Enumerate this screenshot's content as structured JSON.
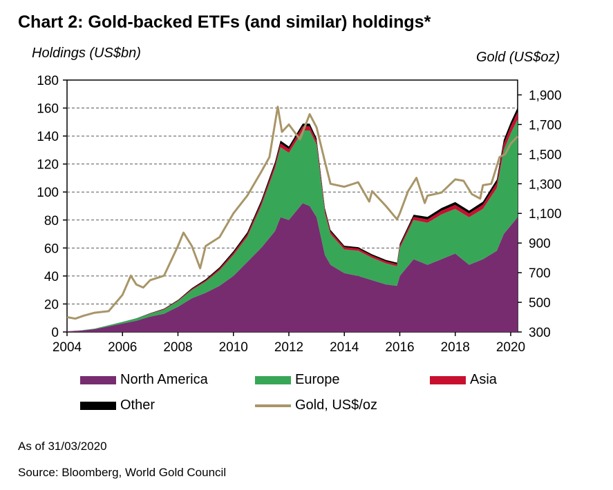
{
  "title": "Chart 2: Gold-backed ETFs (and similar) holdings*",
  "footnotes": {
    "as_of": "As of 31/03/2020",
    "source": "Source: Bloomberg, World Gold Council"
  },
  "chart_data": {
    "type": "area",
    "ylabel_left": "Holdings (US$bn)",
    "ylabel_right": "Gold (US$oz)",
    "xlim": [
      2004,
      2020.25
    ],
    "ylim_left": [
      0,
      180
    ],
    "ylim_right": [
      300,
      2000
    ],
    "x_ticks": [
      "2004",
      "2006",
      "2008",
      "2010",
      "2012",
      "2014",
      "2016",
      "2018",
      "2020"
    ],
    "y_ticks_left": [
      "0",
      "20",
      "40",
      "60",
      "80",
      "100",
      "120",
      "140",
      "160",
      "180"
    ],
    "y_ticks_right": [
      "300",
      "500",
      "700",
      "900",
      "1,100",
      "1,300",
      "1,500",
      "1,700",
      "1,900"
    ],
    "grid": "horizontal dashed",
    "colors": {
      "north_america": "#772C70",
      "europe": "#38A657",
      "asia": "#C8102E",
      "other": "#000000",
      "gold": "#A89668"
    },
    "x": [
      2004.0,
      2004.5,
      2005.0,
      2005.5,
      2006.0,
      2006.5,
      2007.0,
      2007.5,
      2008.0,
      2008.5,
      2009.0,
      2009.5,
      2010.0,
      2010.5,
      2011.0,
      2011.5,
      2011.7,
      2012.0,
      2012.5,
      2012.75,
      2013.0,
      2013.3,
      2013.5,
      2014.0,
      2014.5,
      2015.0,
      2015.5,
      2015.9,
      2016.0,
      2016.5,
      2017.0,
      2017.5,
      2018.0,
      2018.5,
      2019.0,
      2019.5,
      2019.75,
      2020.0,
      2020.25
    ],
    "series": [
      {
        "name": "North America",
        "values": [
          0.5,
          1,
          2,
          4,
          6,
          8,
          11,
          13,
          18,
          24,
          28,
          33,
          40,
          50,
          60,
          72,
          82,
          80,
          92,
          90,
          82,
          55,
          48,
          42,
          40,
          37,
          34,
          33,
          40,
          52,
          48,
          52,
          56,
          48,
          52,
          58,
          70,
          76,
          82
        ]
      },
      {
        "name": "Europe",
        "values": [
          0,
          0.2,
          0.4,
          0.8,
          1.2,
          1.6,
          2,
          3,
          4,
          6,
          8,
          11,
          15,
          18,
          30,
          45,
          50,
          48,
          52,
          54,
          52,
          30,
          22,
          17,
          18,
          16,
          15,
          14,
          20,
          28,
          30,
          32,
          32,
          34,
          36,
          45,
          60,
          66,
          70
        ]
      },
      {
        "name": "Asia",
        "values": [
          0,
          0,
          0,
          0,
          0,
          0,
          0.2,
          0.3,
          0.5,
          0.7,
          0.9,
          1.2,
          1.5,
          1.8,
          2.2,
          2.6,
          2.8,
          2.7,
          2.9,
          2.9,
          2.6,
          2.1,
          1.8,
          1.6,
          1.6,
          1.5,
          1.5,
          1.5,
          1.8,
          2.2,
          2.4,
          2.6,
          2.8,
          2.7,
          3.0,
          3.6,
          4.4,
          4.8,
          5.2
        ]
      },
      {
        "name": "Other",
        "values": [
          0,
          0,
          0,
          0,
          0,
          0.1,
          0.2,
          0.3,
          0.4,
          0.6,
          0.8,
          1.0,
          1.2,
          1.4,
          1.6,
          1.8,
          1.9,
          1.8,
          2.0,
          2.0,
          1.8,
          1.4,
          1.2,
          1.0,
          1.0,
          1.0,
          1.0,
          1.0,
          1.2,
          1.6,
          1.8,
          1.9,
          2.0,
          2.0,
          2.1,
          2.4,
          2.8,
          3.0,
          3.2
        ]
      }
    ],
    "gold_price": {
      "name": "Gold, US$/oz",
      "x": [
        2004.0,
        2004.3,
        2004.6,
        2005.0,
        2005.5,
        2006.0,
        2006.3,
        2006.5,
        2006.75,
        2007.0,
        2007.5,
        2008.0,
        2008.2,
        2008.5,
        2008.8,
        2009.0,
        2009.5,
        2010.0,
        2010.5,
        2011.0,
        2011.3,
        2011.6,
        2011.75,
        2012.0,
        2012.4,
        2012.75,
        2013.0,
        2013.3,
        2013.5,
        2014.0,
        2014.5,
        2014.9,
        2015.0,
        2015.5,
        2015.9,
        2016.0,
        2016.3,
        2016.6,
        2016.9,
        2017.0,
        2017.5,
        2018.0,
        2018.3,
        2018.6,
        2018.9,
        2019.0,
        2019.3,
        2019.6,
        2019.8,
        2020.0,
        2020.25
      ],
      "values": [
        400,
        390,
        410,
        430,
        440,
        550,
        680,
        620,
        600,
        650,
        680,
        880,
        970,
        880,
        730,
        880,
        940,
        1100,
        1220,
        1380,
        1480,
        1820,
        1650,
        1700,
        1600,
        1770,
        1680,
        1450,
        1300,
        1280,
        1310,
        1180,
        1250,
        1150,
        1060,
        1100,
        1250,
        1340,
        1170,
        1220,
        1240,
        1330,
        1320,
        1230,
        1200,
        1290,
        1300,
        1480,
        1500,
        1570,
        1620
      ]
    }
  },
  "legend": [
    {
      "label": "North America",
      "key": "north_america",
      "kind": "area"
    },
    {
      "label": "Europe",
      "key": "europe",
      "kind": "area"
    },
    {
      "label": "Asia",
      "key": "asia",
      "kind": "area"
    },
    {
      "label": "Other",
      "key": "other",
      "kind": "area"
    },
    {
      "label": "Gold, US$/oz",
      "key": "gold",
      "kind": "line"
    }
  ]
}
